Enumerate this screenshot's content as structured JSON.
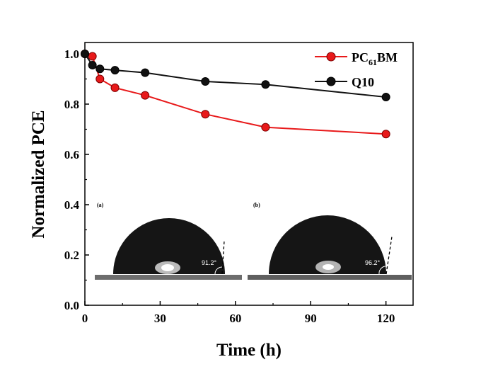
{
  "chart_data": {
    "type": "line",
    "title": "",
    "xlabel": "Time (h)",
    "ylabel": "Normalized PCE",
    "xlim": [
      0,
      130
    ],
    "ylim": [
      0.0,
      1.05
    ],
    "xticks": [
      0,
      30,
      60,
      90,
      120
    ],
    "xtick_labels": [
      "0",
      "30",
      "60",
      "90",
      "120"
    ],
    "yticks": [
      0.0,
      0.2,
      0.4,
      0.6,
      0.8,
      1.0
    ],
    "ytick_labels": [
      "0.0",
      "0.2",
      "0.4",
      "0.6",
      "0.8",
      "1.0"
    ],
    "grid": false,
    "legend_position": "top-right",
    "series": [
      {
        "name_main": "PC",
        "name_sub": "61",
        "name_tail": "BM",
        "color": "#e8191a",
        "x": [
          0,
          3,
          6,
          12,
          24,
          48,
          72,
          120
        ],
        "y": [
          1.0,
          0.99,
          0.9,
          0.865,
          0.835,
          0.76,
          0.708,
          0.681
        ]
      },
      {
        "name": "Q10",
        "color": "#111111",
        "x": [
          0,
          3,
          6,
          12,
          24,
          48,
          72,
          120
        ],
        "y": [
          1.0,
          0.955,
          0.94,
          0.935,
          0.925,
          0.89,
          0.878,
          0.828
        ]
      }
    ],
    "insets": [
      {
        "label": "(a)",
        "angle": "91.2°"
      },
      {
        "label": "(b)",
        "angle": "96.2°"
      }
    ]
  }
}
